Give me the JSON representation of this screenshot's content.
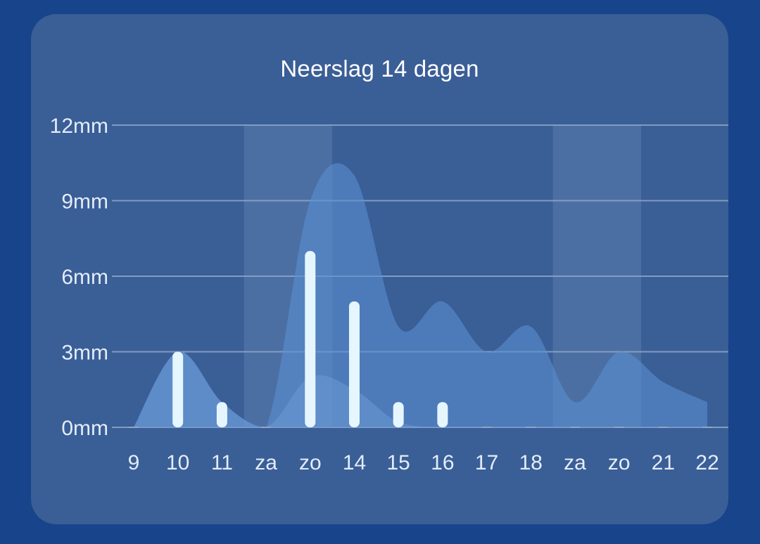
{
  "widget": {
    "title": "Neerslag 14 dagen"
  },
  "colors": {
    "page_background": "#17448a",
    "card_background": "#3a5e96",
    "weekend_band": "#4c6fa3",
    "gridline": "#8fa6c8",
    "area_high": "#5a8fd0",
    "area_low": "#6b9ad6",
    "bar": "#e6f6ff"
  },
  "chart_data": {
    "type": "bar",
    "title": "Neerslag 14 dagen",
    "xlabel": "",
    "ylabel": "",
    "unit": "mm",
    "categories": [
      "9",
      "10",
      "11",
      "za",
      "zo",
      "14",
      "15",
      "16",
      "17",
      "18",
      "za",
      "zo",
      "21",
      "22"
    ],
    "weekend_indices": [
      3,
      4,
      10,
      11
    ],
    "ylim": [
      0,
      12
    ],
    "yticks": [
      0,
      3,
      6,
      9,
      12
    ],
    "ytick_labels": [
      "0mm",
      "3mm",
      "6mm",
      "9mm",
      "12mm"
    ],
    "grid": true,
    "series": [
      {
        "kind": "bar",
        "values": [
          0,
          3,
          1,
          0,
          7,
          5,
          1,
          1,
          0,
          0,
          0,
          0,
          0,
          0
        ]
      },
      {
        "kind": "area",
        "values": [
          0,
          3,
          1,
          0,
          9,
          10,
          4,
          5,
          3,
          4,
          1,
          3,
          1.8,
          1
        ]
      },
      {
        "kind": "area",
        "values": [
          0,
          3,
          1,
          0,
          2,
          1.5,
          0.2,
          0,
          0,
          0,
          0,
          0,
          0,
          0
        ]
      }
    ]
  }
}
